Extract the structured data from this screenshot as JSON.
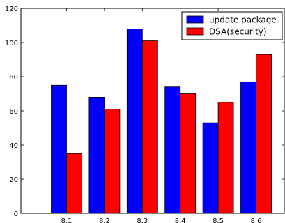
{
  "chart_data": {
    "type": "bar",
    "title": "",
    "xlabel": "",
    "ylabel": "",
    "categories": [
      "8.1",
      "8.2",
      "8.3",
      "8.4",
      "8.5",
      "8.6"
    ],
    "ylim": [
      0,
      120
    ],
    "yticks": [
      0,
      20,
      40,
      60,
      80,
      100,
      120
    ],
    "grid": false,
    "legend_position": "top-right",
    "series": [
      {
        "name": "update package",
        "color": "#0000ff",
        "values": [
          75,
          68,
          108,
          74,
          53,
          77
        ]
      },
      {
        "name": "DSA(security)",
        "color": "#ff0000",
        "values": [
          35,
          61,
          101,
          70,
          65,
          93
        ]
      }
    ]
  }
}
